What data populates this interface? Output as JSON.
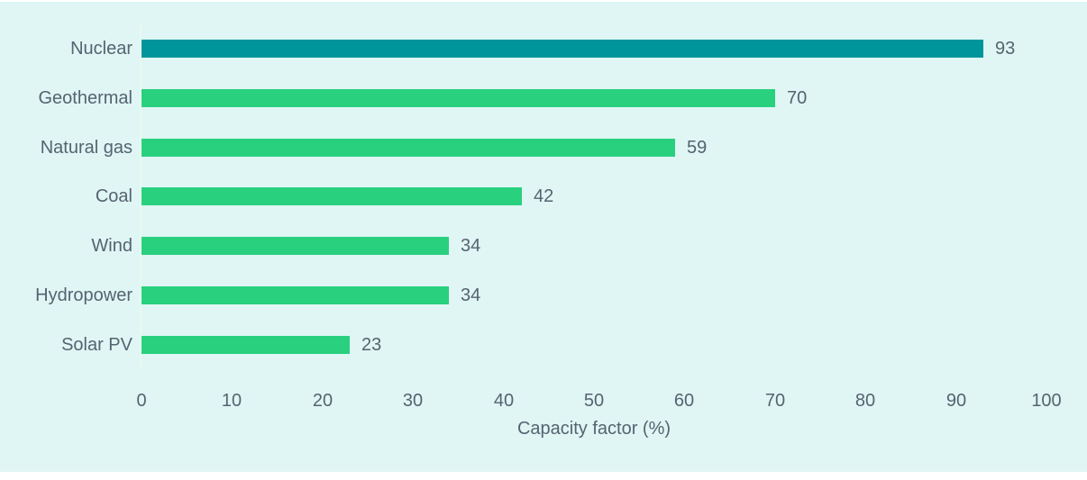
{
  "colors": {
    "background": "#dff6f5",
    "page_background": "#ffffff",
    "bar_default": "#29d07e",
    "bar_highlight": "#00959a",
    "text": "#566370",
    "axis_line": "#e7f9ef"
  },
  "chart_data": {
    "type": "bar",
    "orientation": "horizontal",
    "title": "",
    "xlabel": "Capacity factor (%)",
    "ylabel": "",
    "categories": [
      "Nuclear",
      "Geothermal",
      "Natural gas",
      "Coal",
      "Wind",
      "Hydropower",
      "Solar PV"
    ],
    "values": [
      93,
      70,
      59,
      42,
      34,
      34,
      23
    ],
    "value_labels": [
      "93",
      "70",
      "59",
      "42",
      "34",
      "34",
      "23"
    ],
    "bar_colors": [
      "#00959a",
      "#29d07e",
      "#29d07e",
      "#29d07e",
      "#29d07e",
      "#29d07e",
      "#29d07e"
    ],
    "highlighted_category": "Nuclear",
    "xlim": [
      0,
      100
    ],
    "xticks": [
      0,
      10,
      20,
      30,
      40,
      50,
      60,
      70,
      80,
      90,
      100
    ],
    "xtick_labels": [
      "0",
      "10",
      "20",
      "30",
      "40",
      "50",
      "60",
      "70",
      "80",
      "90",
      "100"
    ],
    "grid": "off",
    "legend": "none"
  }
}
